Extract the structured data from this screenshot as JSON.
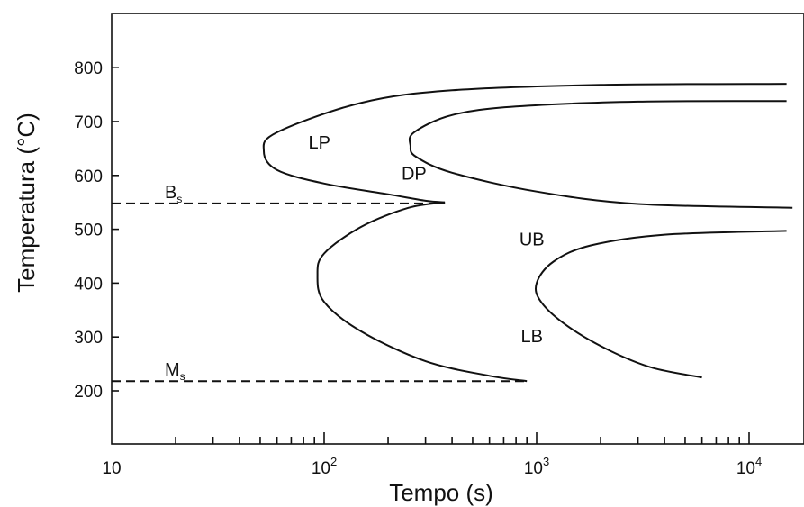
{
  "chart_data": {
    "type": "line",
    "xlabel": "Tempo (s)",
    "ylabel": "Temperatura (°C)",
    "x_scale": "log",
    "xlim": [
      10,
      16000
    ],
    "ylim": [
      100,
      900
    ],
    "x_ticks": [
      {
        "value": 10,
        "base": "10",
        "exp": ""
      },
      {
        "value": 100,
        "base": "10",
        "exp": "2"
      },
      {
        "value": 1000,
        "base": "10",
        "exp": "3"
      },
      {
        "value": 10000,
        "base": "10",
        "exp": "4"
      }
    ],
    "y_ticks": [
      200,
      300,
      400,
      500,
      600,
      700,
      800
    ],
    "series": [
      {
        "id": "pearlite-start",
        "x": [
          15000,
          2000,
          400,
          150,
          60,
          52,
          60,
          100,
          200,
          300,
          370
        ],
        "y": [
          770,
          768,
          758,
          735,
          680,
          645,
          610,
          585,
          565,
          553,
          550
        ]
      },
      {
        "id": "pearlite-finish",
        "x": [
          15000,
          3000,
          800,
          400,
          265,
          255,
          270,
          400,
          1000,
          3000,
          16000
        ],
        "y": [
          738,
          737,
          728,
          712,
          680,
          655,
          635,
          605,
          570,
          547,
          540
        ]
      },
      {
        "id": "bainite-start",
        "x": [
          370,
          250,
          150,
          100,
          93,
          100,
          150,
          300,
          600,
          900
        ],
        "y": [
          550,
          540,
          505,
          455,
          415,
          365,
          310,
          255,
          228,
          218
        ]
      },
      {
        "id": "bainite-finish",
        "x": [
          15000,
          4000,
          1800,
          1200,
          1000,
          1050,
          1400,
          2200,
          3500,
          6000
        ],
        "y": [
          497,
          490,
          470,
          440,
          400,
          365,
          320,
          275,
          243,
          225
        ]
      }
    ],
    "reference_lines": [
      {
        "name": "Bs",
        "letter": "B",
        "sub": "s",
        "y": 548,
        "x_end": 370
      },
      {
        "name": "Ms",
        "letter": "M",
        "sub": "s",
        "y": 218,
        "x_end": 900
      }
    ],
    "annotations": [
      {
        "text": "LP",
        "x": 95,
        "y": 650
      },
      {
        "text": "DP",
        "x": 265,
        "y": 592
      },
      {
        "text": "UB",
        "x": 950,
        "y": 470
      },
      {
        "text": "LB",
        "x": 950,
        "y": 290
      }
    ]
  }
}
